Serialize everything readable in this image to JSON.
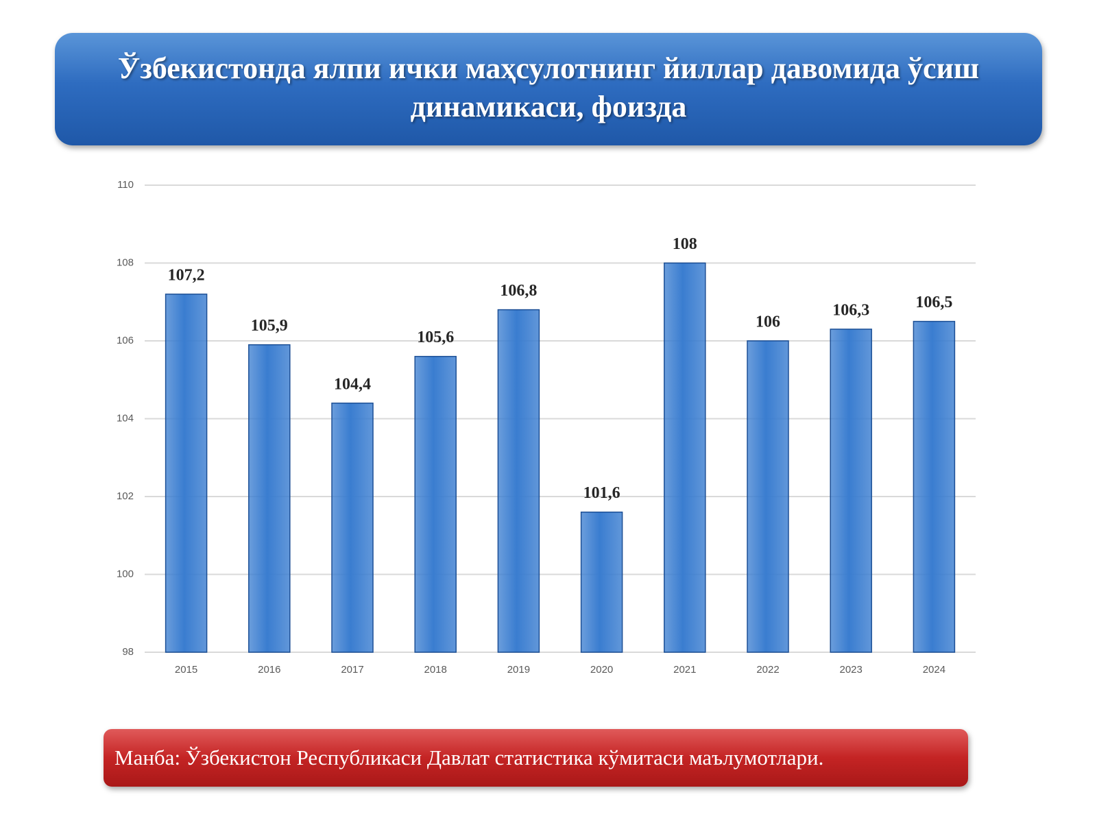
{
  "chart_data": {
    "type": "bar",
    "title": "Ўзбекистонда ялпи ички маҳсулотнинг йиллар давомида ўсиш динамикаси, фоизда",
    "categories": [
      "2015",
      "2016",
      "2017",
      "2018",
      "2019",
      "2020",
      "2021",
      "2022",
      "2023",
      "2024"
    ],
    "values": [
      107.2,
      105.9,
      104.4,
      105.6,
      106.8,
      101.6,
      108,
      106,
      106.3,
      106.5
    ],
    "value_labels": [
      "107,2",
      "105,9",
      "104,4",
      "105,6",
      "106,8",
      "101,6",
      "108",
      "106",
      "106,3",
      "106,5"
    ],
    "color": "#3a7dd0",
    "ylim": [
      98,
      110
    ],
    "yticks": [
      98,
      100,
      102,
      104,
      106,
      108,
      110
    ],
    "grid": true,
    "source": "Манба: Ўзбекистон Республикаси Давлат статистика кўмитаси маълумотлари."
  }
}
